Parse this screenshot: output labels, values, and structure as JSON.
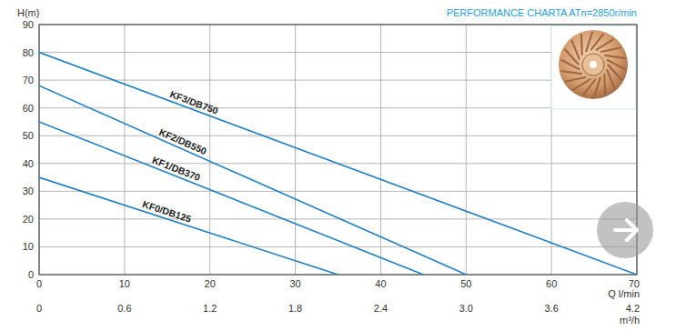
{
  "chart_data": {
    "type": "line",
    "title": "PERFORMANCE CHARTA ATn=2850r/min",
    "y_label": "H(m)",
    "x_label": "Q l/min",
    "x2_label": "m³/h",
    "xlim": [
      0,
      70
    ],
    "xticks": [
      0,
      10,
      20,
      30,
      40,
      50,
      60,
      70
    ],
    "x2lim": [
      0,
      4.2
    ],
    "x2ticks": [
      0,
      0.6,
      1.2,
      1.8,
      2.4,
      {
        "value": 3,
        "label": "3.0"
      },
      3.6,
      4.2
    ],
    "ylim": [
      0,
      90
    ],
    "yticks": [
      0,
      10,
      20,
      30,
      40,
      50,
      60,
      70,
      80,
      90
    ],
    "grid": true,
    "series": [
      {
        "name": "KF3/DB750",
        "color": "#1f7fc1",
        "x": [
          0,
          70
        ],
        "values": [
          80,
          0
        ]
      },
      {
        "name": "KF2/DB550",
        "color": "#1f7fc1",
        "x": [
          0,
          50
        ],
        "values": [
          68,
          0
        ]
      },
      {
        "name": "KF1/DB370",
        "color": "#1f7fc1",
        "x": [
          0,
          45
        ],
        "values": [
          55,
          0
        ]
      },
      {
        "name": "KF0/DB125",
        "color": "#1f7fc1",
        "x": [
          0,
          35
        ],
        "values": [
          35,
          0
        ]
      }
    ]
  }
}
